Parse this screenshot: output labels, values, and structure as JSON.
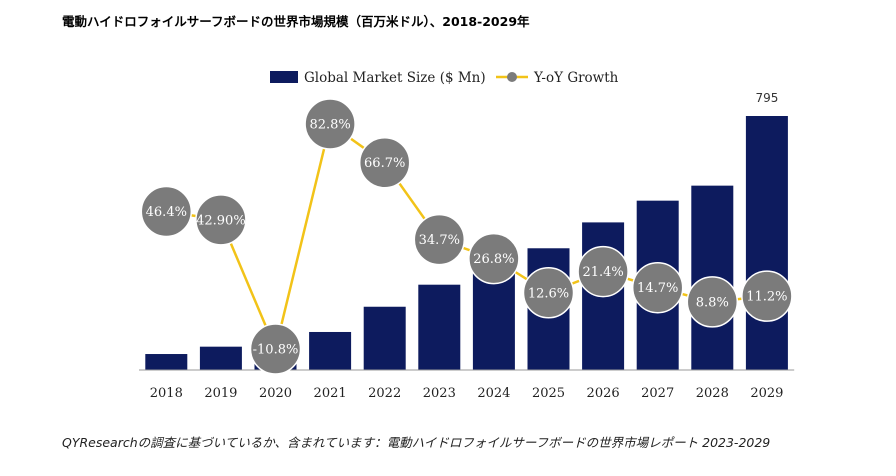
{
  "title": "電動ハイドロフォイルサーフボードの世界市場規模（百万米ドル）、2018-2029年",
  "caption": "QYResearchの調査に基づいているか、含まれています：電動ハイドロフォイルサーフボードの世界市場レポート 2023-2029",
  "chart_data": {
    "type": "bar",
    "categories": [
      "2018",
      "2019",
      "2020",
      "2021",
      "2022",
      "2023",
      "2024",
      "2025",
      "2026",
      "2027",
      "2028",
      "2029"
    ],
    "series": [
      {
        "name": "Global Market Size ($ Mn)",
        "kind": "bar",
        "color": "#0d1b5e",
        "values": [
          50,
          73,
          65,
          119,
          198,
          267,
          338,
          381,
          462,
          530,
          577,
          795
        ]
      },
      {
        "name": "Y-oY Growth",
        "kind": "line",
        "color": "#f2c318",
        "marker_color": "#7b7b7b",
        "values": [
          46.4,
          42.9,
          -10.8,
          82.8,
          66.7,
          34.7,
          26.8,
          12.6,
          21.4,
          14.7,
          8.8,
          11.2
        ],
        "labels": [
          "46.4%",
          "42.90%",
          "-10.8%",
          "82.8%",
          "66.7%",
          "34.7%",
          "26.8%",
          "12.6%",
          "21.4%",
          "14.7%",
          "8.8%",
          "11.2%"
        ]
      }
    ],
    "data_labels": [
      {
        "category": "2029",
        "series": "Global Market Size ($ Mn)",
        "text": "795"
      }
    ],
    "ylim_bar": [
      0,
      795
    ],
    "ylim_growth": [
      -10.8,
      82.8
    ],
    "legend_position": "top-center",
    "grid": false
  }
}
